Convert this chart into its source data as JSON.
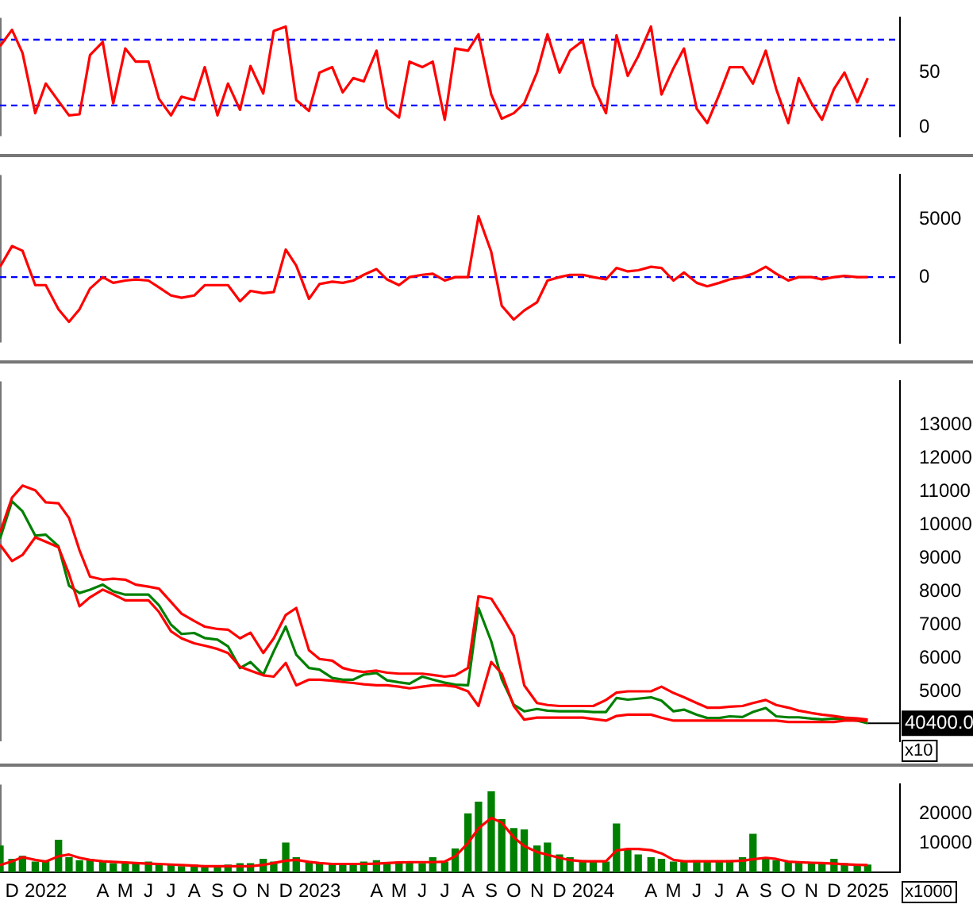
{
  "chart_data": [
    {
      "type": "line",
      "x": [
        "2021-11-15",
        "2021-12-01",
        "2021-12-15",
        "2022-01-01",
        "2022-01-15",
        "2022-02-01",
        "2022-02-15",
        "2022-03-01",
        "2022-03-15",
        "2022-04-01",
        "2022-04-15",
        "2022-05-01",
        "2022-05-15",
        "2022-06-01",
        "2022-06-15",
        "2022-07-01",
        "2022-07-15",
        "2022-08-01",
        "2022-08-15",
        "2022-09-01",
        "2022-09-15",
        "2022-10-01",
        "2022-10-15",
        "2022-11-01",
        "2022-11-15",
        "2022-12-01",
        "2022-12-15",
        "2023-01-01",
        "2023-01-15",
        "2023-02-01",
        "2023-02-15",
        "2023-03-01",
        "2023-03-15",
        "2023-04-01",
        "2023-04-15",
        "2023-05-01",
        "2023-05-15",
        "2023-06-01",
        "2023-06-15",
        "2023-07-01",
        "2023-07-15",
        "2023-08-01",
        "2023-08-15",
        "2023-09-01",
        "2023-09-15",
        "2023-10-01",
        "2023-10-15",
        "2023-11-01",
        "2023-11-15",
        "2023-12-01",
        "2023-12-15",
        "2024-01-01",
        "2024-01-15",
        "2024-02-01",
        "2024-02-15",
        "2024-03-01",
        "2024-03-15",
        "2024-04-01",
        "2024-04-15",
        "2024-05-01",
        "2024-05-15",
        "2024-06-01",
        "2024-06-15",
        "2024-07-01",
        "2024-07-15",
        "2024-08-01",
        "2024-08-15",
        "2024-09-01",
        "2024-09-15",
        "2024-10-01",
        "2024-10-15",
        "2024-11-01",
        "2024-11-15",
        "2024-12-01",
        "2024-12-15",
        "2025-01-01",
        "2025-01-15"
      ],
      "series": [
        {
          "color": "#ff0000",
          "values": [
            74,
            89,
            68,
            13,
            40,
            24,
            11,
            12,
            66,
            78,
            22,
            72,
            60,
            60,
            26,
            11,
            28,
            25,
            55,
            11,
            40,
            16,
            56,
            31,
            88,
            92,
            25,
            15,
            50,
            55,
            32,
            45,
            42,
            70,
            18,
            9,
            60,
            55,
            60,
            7,
            72,
            70,
            85,
            30,
            8,
            13,
            22,
            50,
            85,
            50,
            70,
            79,
            38,
            13,
            84,
            47,
            65,
            92,
            30,
            54,
            72,
            17,
            4,
            30,
            55,
            55,
            40,
            70,
            35,
            4,
            45,
            22,
            7,
            35,
            50,
            23,
            45
          ]
        }
      ],
      "xlim": [
        "2021-11-15",
        "2025-02-27"
      ],
      "ylim": [
        -8,
        100
      ],
      "yticks": [
        0,
        50
      ],
      "tick_labels": "y",
      "ref_lines": [
        {
          "axis": "y",
          "value": 20,
          "color": "#0000ff",
          "line_style": "dashed"
        },
        {
          "axis": "y",
          "value": 80,
          "color": "#0000ff",
          "line_style": "dashed"
        }
      ],
      "marker": "none"
    },
    {
      "type": "line",
      "x": [
        "2021-11-15",
        "2021-12-01",
        "2021-12-15",
        "2022-01-01",
        "2022-01-15",
        "2022-02-01",
        "2022-02-15",
        "2022-03-01",
        "2022-03-15",
        "2022-04-01",
        "2022-04-15",
        "2022-05-01",
        "2022-05-15",
        "2022-06-01",
        "2022-06-15",
        "2022-07-01",
        "2022-07-15",
        "2022-08-01",
        "2022-08-15",
        "2022-09-01",
        "2022-09-15",
        "2022-10-01",
        "2022-10-15",
        "2022-11-01",
        "2022-11-15",
        "2022-12-01",
        "2022-12-15",
        "2023-01-01",
        "2023-01-15",
        "2023-02-01",
        "2023-02-15",
        "2023-03-01",
        "2023-03-15",
        "2023-04-01",
        "2023-04-15",
        "2023-05-01",
        "2023-05-15",
        "2023-06-01",
        "2023-06-15",
        "2023-07-01",
        "2023-07-15",
        "2023-08-01",
        "2023-08-15",
        "2023-09-01",
        "2023-09-15",
        "2023-10-01",
        "2023-10-15",
        "2023-11-01",
        "2023-11-15",
        "2023-12-01",
        "2023-12-15",
        "2024-01-01",
        "2024-01-15",
        "2024-02-01",
        "2024-02-15",
        "2024-03-01",
        "2024-03-15",
        "2024-04-01",
        "2024-04-15",
        "2024-05-01",
        "2024-05-15",
        "2024-06-01",
        "2024-06-15",
        "2024-07-01",
        "2024-07-15",
        "2024-08-01",
        "2024-08-15",
        "2024-09-01",
        "2024-09-15",
        "2024-10-01",
        "2024-10-15",
        "2024-11-01",
        "2024-11-15",
        "2024-12-01",
        "2024-12-15",
        "2025-01-01",
        "2025-01-15"
      ],
      "series": [
        {
          "color": "#ff0000",
          "values": [
            900,
            2700,
            2300,
            -700,
            -700,
            -2800,
            -3900,
            -2800,
            -1000,
            0,
            -500,
            -300,
            -200,
            -300,
            -900,
            -1600,
            -1800,
            -1600,
            -700,
            -700,
            -700,
            -2100,
            -1200,
            -1400,
            -1300,
            2400,
            1000,
            -1900,
            -600,
            -400,
            -500,
            -300,
            200,
            700,
            -200,
            -700,
            0,
            200,
            300,
            -300,
            0,
            0,
            5300,
            2200,
            -2500,
            -3700,
            -2900,
            -2200,
            -300,
            0,
            200,
            200,
            0,
            -200,
            800,
            500,
            600,
            900,
            800,
            -300,
            400,
            -500,
            -800,
            -500,
            -200,
            0,
            300,
            900,
            300,
            -300,
            0,
            0,
            -200,
            0,
            100,
            0,
            0
          ]
        }
      ],
      "xlim": [
        "2021-11-15",
        "2025-02-27"
      ],
      "ylim": [
        -5700,
        8900
      ],
      "yticks": [
        0,
        5000
      ],
      "tick_labels": "y",
      "ref_lines": [
        {
          "axis": "y",
          "value": 0,
          "color": "#0000ff",
          "line_style": "dashed"
        }
      ],
      "marker": "none"
    },
    {
      "type": "line",
      "x": [
        "2021-11-15",
        "2021-12-01",
        "2021-12-15",
        "2022-01-01",
        "2022-01-15",
        "2022-02-01",
        "2022-02-15",
        "2022-03-01",
        "2022-03-15",
        "2022-04-01",
        "2022-04-15",
        "2022-05-01",
        "2022-05-15",
        "2022-06-01",
        "2022-06-15",
        "2022-07-01",
        "2022-07-15",
        "2022-08-01",
        "2022-08-15",
        "2022-09-01",
        "2022-09-15",
        "2022-10-01",
        "2022-10-15",
        "2022-11-01",
        "2022-11-15",
        "2022-12-01",
        "2022-12-15",
        "2023-01-01",
        "2023-01-15",
        "2023-02-01",
        "2023-02-15",
        "2023-03-01",
        "2023-03-15",
        "2023-04-01",
        "2023-04-15",
        "2023-05-01",
        "2023-05-15",
        "2023-06-01",
        "2023-06-15",
        "2023-07-01",
        "2023-07-15",
        "2023-08-01",
        "2023-08-15",
        "2023-09-01",
        "2023-09-15",
        "2023-10-01",
        "2023-10-15",
        "2023-11-01",
        "2023-11-15",
        "2023-12-01",
        "2023-12-15",
        "2024-01-01",
        "2024-01-15",
        "2024-02-01",
        "2024-02-15",
        "2024-03-01",
        "2024-03-15",
        "2024-04-01",
        "2024-04-15",
        "2024-05-01",
        "2024-05-15",
        "2024-06-01",
        "2024-06-15",
        "2024-07-01",
        "2024-07-15",
        "2024-08-01",
        "2024-08-15",
        "2024-09-01",
        "2024-09-15",
        "2024-10-01",
        "2024-10-15",
        "2024-11-01",
        "2024-11-15",
        "2024-12-01",
        "2024-12-15",
        "2025-01-01",
        "2025-01-15"
      ],
      "series": [
        {
          "color": "#ff0000",
          "values": [
            9760,
            10810,
            11170,
            11030,
            10670,
            10640,
            10200,
            9230,
            8440,
            8350,
            8380,
            8350,
            8200,
            8140,
            8080,
            7680,
            7330,
            7110,
            6940,
            6870,
            6850,
            6590,
            6760,
            6150,
            6590,
            7290,
            7500,
            6230,
            5970,
            5920,
            5700,
            5620,
            5580,
            5620,
            5560,
            5530,
            5530,
            5530,
            5490,
            5440,
            5480,
            5700,
            7850,
            7780,
            7290,
            6670,
            5180,
            4650,
            4590,
            4560,
            4560,
            4560,
            4560,
            4740,
            4960,
            5000,
            5000,
            5000,
            5140,
            4950,
            4820,
            4650,
            4510,
            4510,
            4540,
            4560,
            4650,
            4740,
            4590,
            4510,
            4420,
            4350,
            4300,
            4260,
            4210,
            4190,
            4150
          ]
        },
        {
          "color": "#ff0000",
          "values": [
            9400,
            8910,
            9090,
            9620,
            9490,
            9320,
            8520,
            7550,
            7820,
            8050,
            7910,
            7730,
            7730,
            7730,
            7380,
            6800,
            6590,
            6440,
            6370,
            6270,
            6150,
            5740,
            5620,
            5480,
            5440,
            5850,
            5180,
            5350,
            5350,
            5320,
            5280,
            5250,
            5210,
            5180,
            5180,
            5140,
            5090,
            5140,
            5180,
            5180,
            5140,
            5000,
            4560,
            5880,
            5530,
            4560,
            4150,
            4210,
            4210,
            4210,
            4210,
            4210,
            4170,
            4120,
            4260,
            4300,
            4300,
            4300,
            4210,
            4120,
            4120,
            4120,
            4120,
            4120,
            4120,
            4120,
            4120,
            4120,
            4120,
            4080,
            4080,
            4080,
            4080,
            4080,
            4120,
            4120,
            4120
          ]
        },
        {
          "color": "#008000",
          "values": [
            9580,
            10700,
            10400,
            9670,
            9700,
            9350,
            8170,
            7950,
            8050,
            8200,
            8000,
            7900,
            7900,
            7900,
            7580,
            7000,
            6720,
            6750,
            6600,
            6550,
            6350,
            5700,
            5880,
            5500,
            6200,
            6940,
            6100,
            5700,
            5650,
            5400,
            5350,
            5350,
            5500,
            5550,
            5330,
            5270,
            5230,
            5440,
            5350,
            5260,
            5200,
            5180,
            7500,
            6500,
            5360,
            4600,
            4400,
            4470,
            4420,
            4400,
            4400,
            4400,
            4380,
            4380,
            4800,
            4750,
            4780,
            4820,
            4720,
            4400,
            4450,
            4300,
            4200,
            4200,
            4250,
            4230,
            4380,
            4500,
            4250,
            4220,
            4220,
            4180,
            4160,
            4180,
            4160,
            4120,
            4040
          ]
        }
      ],
      "xlim": [
        "2021-11-15",
        "2025-02-27"
      ],
      "ylim": [
        3500,
        14300
      ],
      "yticks": [
        5000,
        6000,
        7000,
        8000,
        9000,
        10000,
        11000,
        12000,
        13000
      ],
      "tick_labels": "y",
      "marker": "none",
      "annotations": [
        {
          "text": "40400.0",
          "x": "2025-01-15",
          "y": 4040
        },
        "x10"
      ]
    },
    {
      "type": "bar",
      "x": [
        "2021-11-15",
        "2021-12-01",
        "2021-12-15",
        "2022-01-01",
        "2022-01-15",
        "2022-02-01",
        "2022-02-15",
        "2022-03-01",
        "2022-03-15",
        "2022-04-01",
        "2022-04-15",
        "2022-05-01",
        "2022-05-15",
        "2022-06-01",
        "2022-06-15",
        "2022-07-01",
        "2022-07-15",
        "2022-08-01",
        "2022-08-15",
        "2022-09-01",
        "2022-09-15",
        "2022-10-01",
        "2022-10-15",
        "2022-11-01",
        "2022-11-15",
        "2022-12-01",
        "2022-12-15",
        "2023-01-01",
        "2023-01-15",
        "2023-02-01",
        "2023-02-15",
        "2023-03-01",
        "2023-03-15",
        "2023-04-01",
        "2023-04-15",
        "2023-05-01",
        "2023-05-15",
        "2023-06-01",
        "2023-06-15",
        "2023-07-01",
        "2023-07-15",
        "2023-08-01",
        "2023-08-15",
        "2023-09-01",
        "2023-09-15",
        "2023-10-01",
        "2023-10-15",
        "2023-11-01",
        "2023-11-15",
        "2023-12-01",
        "2023-12-15",
        "2024-01-01",
        "2024-01-15",
        "2024-02-01",
        "2024-02-15",
        "2024-03-01",
        "2024-03-15",
        "2024-04-01",
        "2024-04-15",
        "2024-05-01",
        "2024-05-15",
        "2024-06-01",
        "2024-06-15",
        "2024-07-01",
        "2024-07-15",
        "2024-08-01",
        "2024-08-15",
        "2024-09-01",
        "2024-09-15",
        "2024-10-01",
        "2024-10-15",
        "2024-11-01",
        "2024-11-15",
        "2024-12-01",
        "2024-12-15",
        "2025-01-01",
        "2025-01-15"
      ],
      "series": [
        {
          "color": "#008000",
          "values": [
            9000,
            4500,
            5500,
            3500,
            4000,
            11000,
            5000,
            4000,
            4500,
            3500,
            3000,
            3000,
            3000,
            3500,
            2500,
            2500,
            2000,
            2500,
            2000,
            2000,
            2500,
            3000,
            3000,
            4500,
            3500,
            10000,
            5000,
            3500,
            3000,
            3000,
            3000,
            2500,
            3500,
            4000,
            3000,
            3500,
            3500,
            3000,
            5000,
            3500,
            8000,
            20000,
            24000,
            27500,
            18000,
            15000,
            14500,
            9000,
            10000,
            6000,
            5000,
            4000,
            3500,
            3500,
            16500,
            8000,
            6000,
            5000,
            4500,
            3500,
            3500,
            4000,
            3500,
            3500,
            4000,
            5000,
            13000,
            5000,
            4000,
            3500,
            3500,
            3000,
            3000,
            4500,
            3000,
            2500,
            2500
          ]
        },
        {
          "type": "line",
          "color": "#ff0000",
          "values": [
            2500,
            3800,
            5200,
            4300,
            3700,
            5500,
            6100,
            5000,
            4300,
            3800,
            3600,
            3400,
            3200,
            3000,
            2900,
            2700,
            2500,
            2300,
            2100,
            2100,
            2100,
            2100,
            2100,
            2600,
            3200,
            4000,
            4300,
            3600,
            3200,
            2900,
            2900,
            2900,
            2900,
            3000,
            3200,
            3400,
            3500,
            3500,
            3500,
            3700,
            5500,
            10000,
            15000,
            18600,
            17000,
            12000,
            9000,
            7000,
            6000,
            5000,
            4200,
            3800,
            3800,
            3800,
            7500,
            8000,
            8000,
            7600,
            6500,
            4300,
            3800,
            3800,
            3800,
            3800,
            3800,
            4000,
            4500,
            5000,
            4600,
            3700,
            3500,
            3300,
            3200,
            3000,
            2800,
            2600,
            2500
          ]
        }
      ],
      "xlim": [
        "2021-11-15",
        "2025-02-27"
      ],
      "ylim": [
        0,
        30000
      ],
      "yticks": [
        10000,
        20000
      ],
      "marker": "none",
      "xticks": [
        {
          "value": "2021-12-01",
          "label": "D"
        },
        {
          "value": "2022-01-15",
          "label": "2022"
        },
        {
          "value": "2022-04-01",
          "label": "A"
        },
        {
          "value": "2022-05-01",
          "label": "M"
        },
        {
          "value": "2022-06-01",
          "label": "J"
        },
        {
          "value": "2022-07-01",
          "label": "J"
        },
        {
          "value": "2022-08-01",
          "label": "A"
        },
        {
          "value": "2022-09-01",
          "label": "S"
        },
        {
          "value": "2022-10-01",
          "label": "O"
        },
        {
          "value": "2022-11-01",
          "label": "N"
        },
        {
          "value": "2022-12-01",
          "label": "D"
        },
        {
          "value": "2023-01-15",
          "label": "2023"
        },
        {
          "value": "2023-04-01",
          "label": "A"
        },
        {
          "value": "2023-05-01",
          "label": "M"
        },
        {
          "value": "2023-06-01",
          "label": "J"
        },
        {
          "value": "2023-07-01",
          "label": "J"
        },
        {
          "value": "2023-08-01",
          "label": "A"
        },
        {
          "value": "2023-09-01",
          "label": "S"
        },
        {
          "value": "2023-10-01",
          "label": "O"
        },
        {
          "value": "2023-11-01",
          "label": "N"
        },
        {
          "value": "2023-12-01",
          "label": "D"
        },
        {
          "value": "2024-01-15",
          "label": "2024"
        },
        {
          "value": "2024-04-01",
          "label": "A"
        },
        {
          "value": "2024-05-01",
          "label": "M"
        },
        {
          "value": "2024-06-01",
          "label": "J"
        },
        {
          "value": "2024-07-01",
          "label": "J"
        },
        {
          "value": "2024-08-01",
          "label": "A"
        },
        {
          "value": "2024-09-01",
          "label": "S"
        },
        {
          "value": "2024-10-01",
          "label": "O"
        },
        {
          "value": "2024-11-01",
          "label": "N"
        },
        {
          "value": "2024-12-01",
          "label": "D"
        },
        {
          "value": "2025-01-15",
          "label": "2025"
        }
      ],
      "annotations": [
        "x1000"
      ]
    }
  ]
}
